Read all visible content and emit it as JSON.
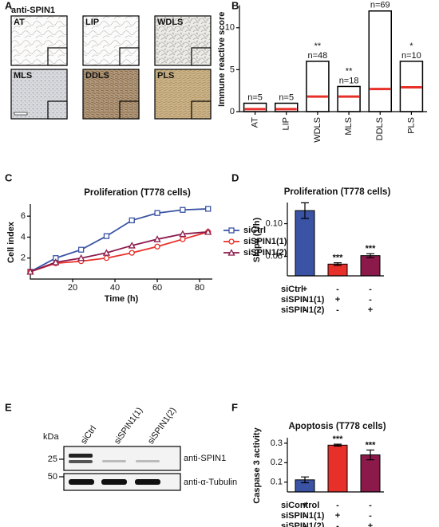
{
  "panel_labels": [
    "A",
    "B",
    "C",
    "D",
    "E",
    "F"
  ],
  "panel_a": {
    "title": "anti-SPIN1",
    "tiles": [
      "AT",
      "LIP",
      "WDLS",
      "MLS",
      "DDLS",
      "PLS"
    ]
  },
  "panel_e": {
    "kda_label": "kDa",
    "lanes": [
      "siCtrl",
      "siSPIN1(1)",
      "siSPIN1(2)"
    ],
    "markers": [
      25,
      50
    ],
    "bands": [
      "anti-SPIN1",
      "anti-α-Tubulin"
    ]
  },
  "chart_data": [
    {
      "type": "box",
      "ylabel": "Immune reactive score",
      "categories": [
        "AT",
        "LIP",
        "WDLS",
        "MLS",
        "DDLS",
        "PLS"
      ],
      "values": [
        1,
        1,
        6,
        3,
        12,
        6
      ],
      "medians": [
        0.3,
        0.3,
        1.8,
        1.8,
        2.7,
        2.9
      ],
      "color": "#000000",
      "median_color": "#e8302a",
      "counts": [
        "n=5",
        "n=5",
        "n=48",
        "n=18",
        "n=69",
        "n=10"
      ],
      "significance": [
        null,
        null,
        "**",
        "**",
        "*",
        "*"
      ],
      "ylim": [
        0,
        12.5
      ],
      "yticks": [
        0,
        5,
        10
      ]
    },
    {
      "type": "line",
      "title": "Proliferation (T778 cells)",
      "xlabel": "Time (h)",
      "ylabel": "Cell index",
      "x": [
        0,
        12,
        24,
        36,
        48,
        60,
        72,
        84
      ],
      "series": [
        {
          "name": "siCtrl",
          "color": "#3a53a4",
          "marker": "square",
          "values": [
            0.7,
            2.0,
            2.8,
            4.1,
            5.6,
            6.3,
            6.6,
            6.7
          ]
        },
        {
          "name": "siSPIN1(1)",
          "color": "#e8302a",
          "marker": "circle",
          "values": [
            0.7,
            1.5,
            1.7,
            2.0,
            2.5,
            3.1,
            3.8,
            4.5
          ]
        },
        {
          "name": "siSPIN1(2)",
          "color": "#8b1a4b",
          "marker": "triangle",
          "values": [
            0.7,
            1.6,
            2.0,
            2.5,
            3.2,
            3.8,
            4.3,
            4.5
          ]
        }
      ],
      "xlim": [
        0,
        86
      ],
      "xticks": [
        20,
        40,
        60,
        80
      ],
      "ylim": [
        0,
        7
      ],
      "yticks": [
        2,
        4,
        6
      ]
    },
    {
      "type": "bar",
      "title": "Proliferation (T778 cells)",
      "ylabel": "Slope (1/h)",
      "values": [
        0.12,
        0.038,
        0.051
      ],
      "errors": [
        0.012,
        0.002,
        0.003
      ],
      "colors": [
        "#3a53a4",
        "#e8302a",
        "#8b1a4b"
      ],
      "significance": [
        null,
        "***",
        "***"
      ],
      "conditions": [
        {
          "label": "siCtrl",
          "marks": [
            "+",
            "-",
            "-"
          ]
        },
        {
          "label": "siSPIN1(1)",
          "marks": [
            "-",
            "+",
            "-"
          ]
        },
        {
          "label": "siSPIN1(2)",
          "marks": [
            "-",
            "-",
            "+"
          ]
        }
      ],
      "ylim": [
        0.02,
        0.13
      ],
      "yticks": [
        0.05,
        {
          "value": 0.1,
          "label": "0.10"
        }
      ]
    },
    {
      "type": "bar",
      "title": "Apoptosis (T778 cells)",
      "ylabel": "Caspase 3 activity",
      "values": [
        0.112,
        0.29,
        0.24
      ],
      "errors": [
        0.015,
        0.005,
        0.025
      ],
      "colors": [
        "#3a53a4",
        "#e8302a",
        "#8b1a4b"
      ],
      "significance": [
        null,
        "***",
        "***"
      ],
      "conditions": [
        {
          "label": "siControl",
          "marks": [
            "+",
            "-",
            "-"
          ]
        },
        {
          "label": "siSPIN1(1)",
          "marks": [
            "-",
            "+",
            "-"
          ]
        },
        {
          "label": "siSPIN1(2)",
          "marks": [
            "-",
            "-",
            "+"
          ]
        }
      ],
      "ylim": [
        0.05,
        0.32
      ],
      "yticks": [
        0.1,
        0.2,
        0.3
      ]
    }
  ]
}
